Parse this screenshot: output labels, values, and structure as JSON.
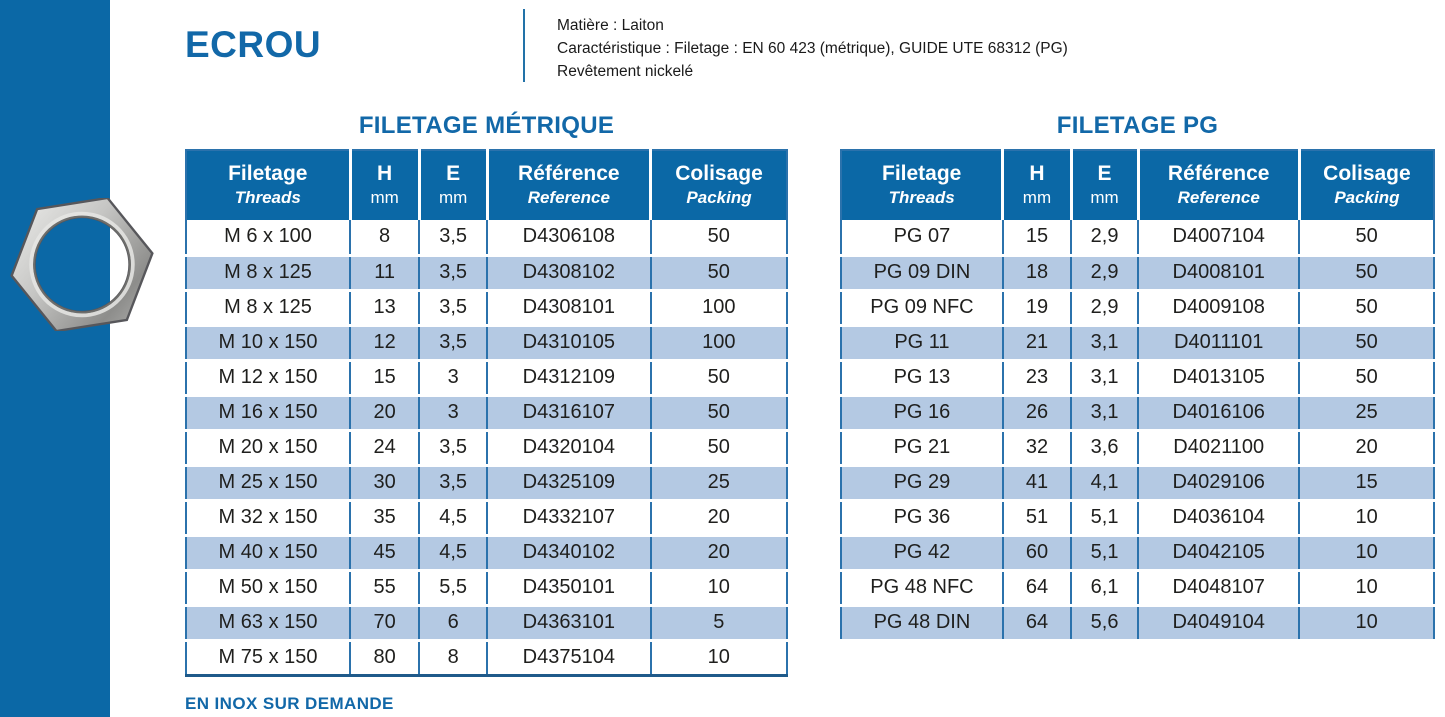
{
  "page": {
    "title": "ECROU",
    "info_lines": [
      "Matière : Laiton",
      "Caractéristique : Filetage : EN 60 423 (métrique), GUIDE UTE 68312 (PG)",
      "Revêtement nickelé"
    ],
    "footer_note": "EN INOX SUR DEMANDE"
  },
  "images": {
    "nut": "hex-nut-photo"
  },
  "colors": {
    "accent_blue": "#0b68a6",
    "heading_blue": "#1268a8",
    "stripe_blue": "#b4c9e3",
    "grid_blue": "#2b72ac"
  },
  "tables": [
    {
      "title": "FILETAGE MÉTRIQUE",
      "columns": [
        {
          "fr": "Filetage",
          "en": "Threads"
        },
        {
          "fr": "H",
          "en": "mm"
        },
        {
          "fr": "E",
          "en": "mm"
        },
        {
          "fr": "Référence",
          "en": "Reference"
        },
        {
          "fr": "Colisage",
          "en": "Packing"
        }
      ],
      "rows": [
        [
          "M 6 x 100",
          "8",
          "3,5",
          "D4306108",
          "50"
        ],
        [
          "M 8 x 125",
          "11",
          "3,5",
          "D4308102",
          "50"
        ],
        [
          "M 8 x 125",
          "13",
          "3,5",
          "D4308101",
          "100"
        ],
        [
          "M 10 x 150",
          "12",
          "3,5",
          "D4310105",
          "100"
        ],
        [
          "M 12 x 150",
          "15",
          "3",
          "D4312109",
          "50"
        ],
        [
          "M 16 x 150",
          "20",
          "3",
          "D4316107",
          "50"
        ],
        [
          "M 20 x 150",
          "24",
          "3,5",
          "D4320104",
          "50"
        ],
        [
          "M 25 x 150",
          "30",
          "3,5",
          "D4325109",
          "25"
        ],
        [
          "M 32 x 150",
          "35",
          "4,5",
          "D4332107",
          "20"
        ],
        [
          "M 40 x 150",
          "45",
          "4,5",
          "D4340102",
          "20"
        ],
        [
          "M 50 x 150",
          "55",
          "5,5",
          "D4350101",
          "10"
        ],
        [
          "M 63 x 150",
          "70",
          "6",
          "D4363101",
          "5"
        ],
        [
          "M 75 x 150",
          "80",
          "8",
          "D4375104",
          "10"
        ]
      ]
    },
    {
      "title": "FILETAGE PG",
      "columns": [
        {
          "fr": "Filetage",
          "en": "Threads"
        },
        {
          "fr": "H",
          "en": "mm"
        },
        {
          "fr": "E",
          "en": "mm"
        },
        {
          "fr": "Référence",
          "en": "Reference"
        },
        {
          "fr": "Colisage",
          "en": "Packing"
        }
      ],
      "rows": [
        [
          "PG 07",
          "15",
          "2,9",
          "D4007104",
          "50"
        ],
        [
          "PG 09 DIN",
          "18",
          "2,9",
          "D4008101",
          "50"
        ],
        [
          "PG 09 NFC",
          "19",
          "2,9",
          "D4009108",
          "50"
        ],
        [
          "PG 11",
          "21",
          "3,1",
          "D4011101",
          "50"
        ],
        [
          "PG 13",
          "23",
          "3,1",
          "D4013105",
          "50"
        ],
        [
          "PG 16",
          "26",
          "3,1",
          "D4016106",
          "25"
        ],
        [
          "PG 21",
          "32",
          "3,6",
          "D4021100",
          "20"
        ],
        [
          "PG 29",
          "41",
          "4,1",
          "D4029106",
          "15"
        ],
        [
          "PG 36",
          "51",
          "5,1",
          "D4036104",
          "10"
        ],
        [
          "PG 42",
          "60",
          "5,1",
          "D4042105",
          "10"
        ],
        [
          "PG 48 NFC",
          "64",
          "6,1",
          "D4048107",
          "10"
        ],
        [
          "PG 48 DIN",
          "64",
          "5,6",
          "D4049104",
          "10"
        ]
      ]
    }
  ]
}
